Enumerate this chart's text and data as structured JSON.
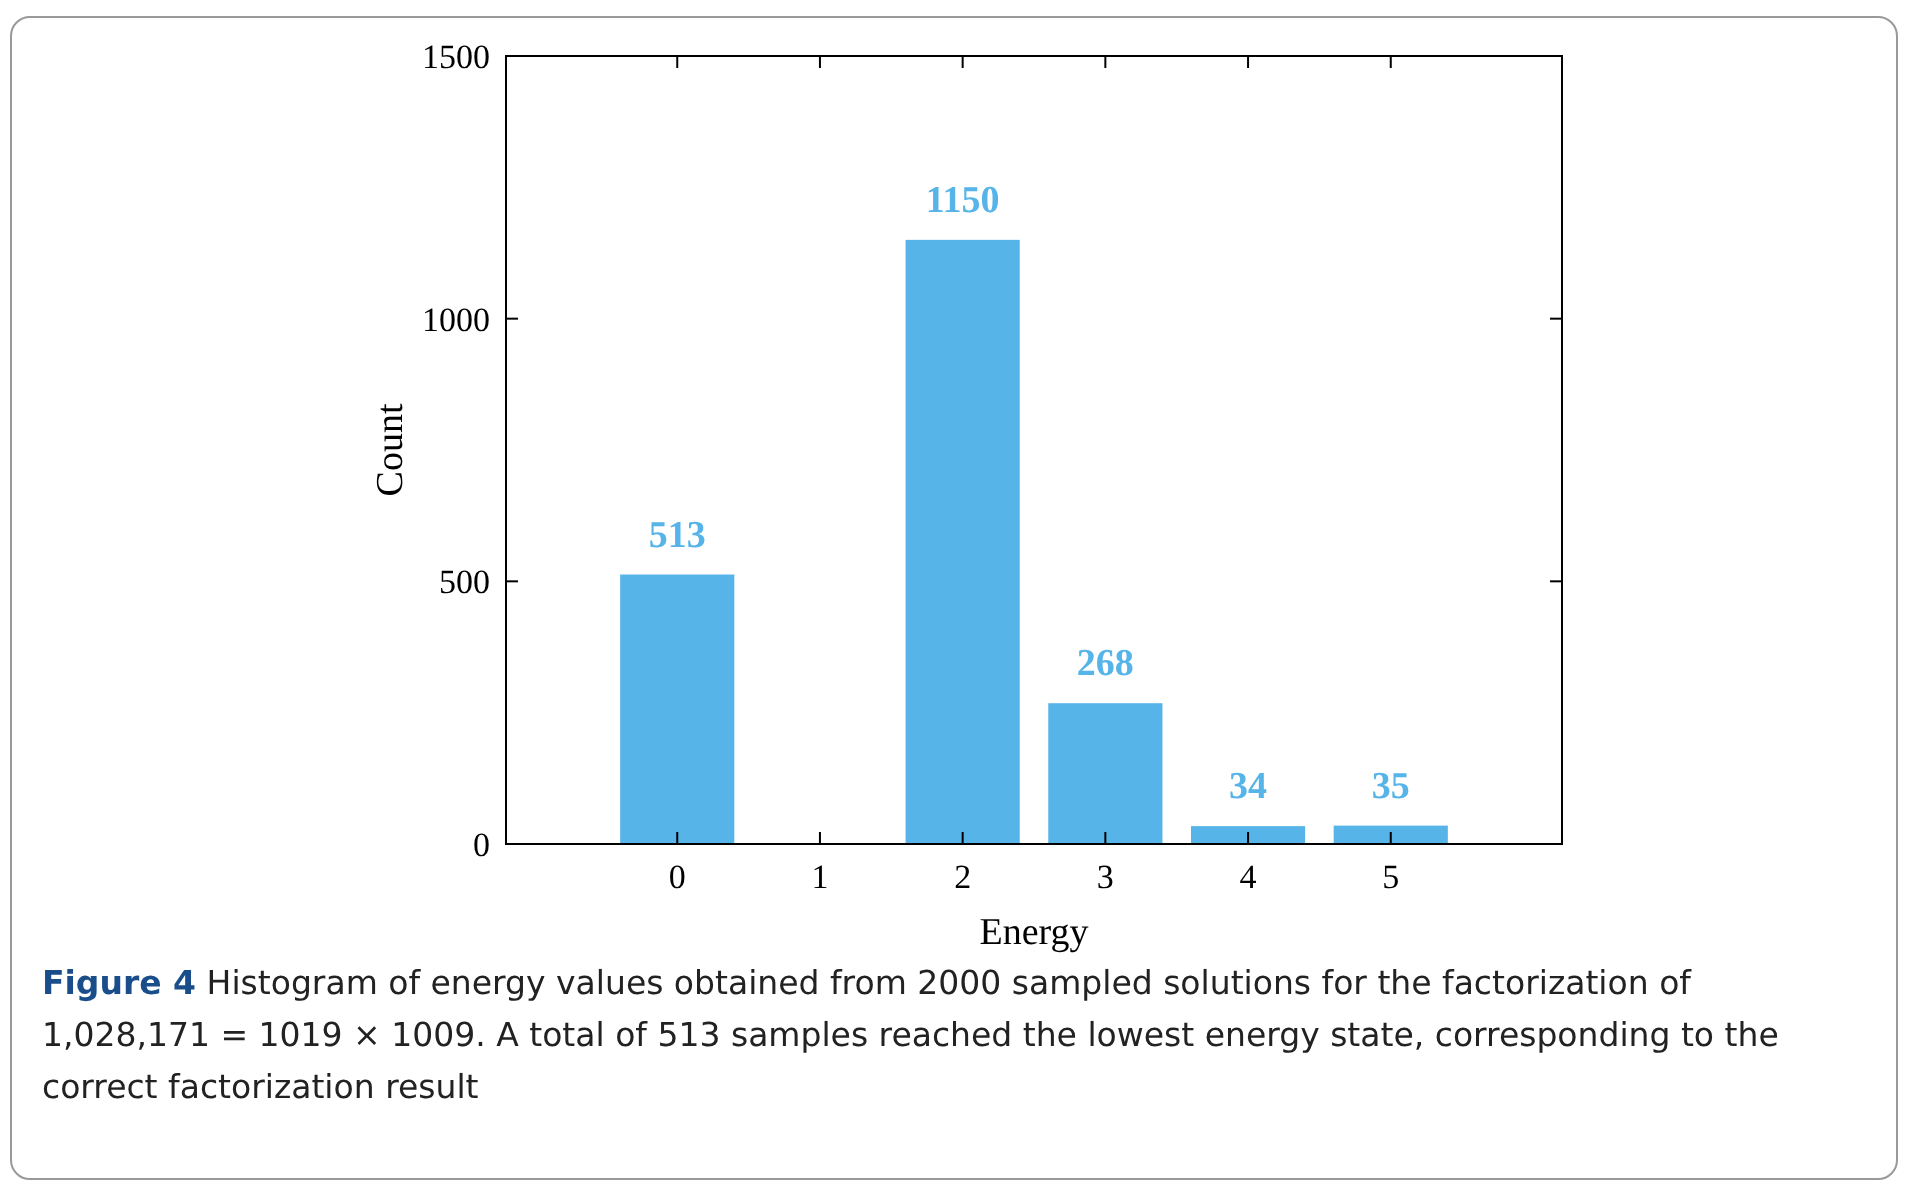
{
  "chart_data": {
    "type": "bar",
    "xlabel": "Energy",
    "ylabel": "Count",
    "x": [
      0,
      1,
      2,
      3,
      4,
      5
    ],
    "values": [
      513,
      0,
      1150,
      268,
      34,
      35
    ],
    "value_labels": [
      "513",
      null,
      "1150",
      "268",
      "34",
      "35"
    ],
    "color": "#56b4e9",
    "xlim": [
      -1.2,
      6.2
    ],
    "xticks": [
      0,
      1,
      2,
      3,
      4,
      5
    ],
    "ylim": [
      0,
      1500
    ],
    "yticks": [
      0,
      500,
      1000,
      1500
    ],
    "grid": false,
    "annotations": [
      "Figure 4",
      "Histogram of energy values obtained from 2000 sampled solutions for the factorization of 1,028,171 = 1019 × 1009. A total of 513 samples reached the lowest energy state, corresponding to the correct factorization result"
    ]
  }
}
